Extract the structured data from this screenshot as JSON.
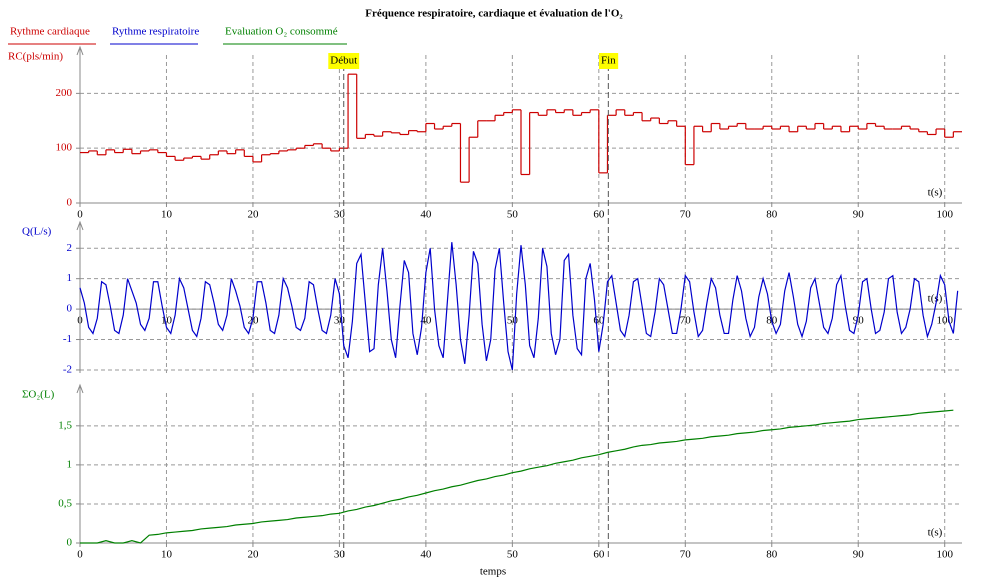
{
  "chart_data": [
    {
      "type": "line",
      "title": "Fréquence respiratoire, cardiaque et évaluation de l'O₂",
      "ylabel": "RC(pls/min)",
      "xlabel": "t(s)",
      "step": true,
      "grid": true,
      "xlim": [
        0,
        102
      ],
      "xticks": [
        0,
        10,
        20,
        30,
        40,
        50,
        60,
        70,
        80,
        90,
        100
      ],
      "ylim": [
        0,
        270
      ],
      "yticks": [
        0,
        100,
        200
      ],
      "annotations": [
        {
          "text": "Début",
          "x": 30.5
        },
        {
          "text": "Fin",
          "x": 61.1
        }
      ],
      "series": [
        {
          "name": "Rythme cardiaque",
          "color": "#cc0000",
          "x": [
            0,
            1,
            2,
            3,
            4,
            5,
            6,
            7,
            8,
            9,
            10,
            11,
            12,
            13,
            14,
            15,
            16,
            17,
            18,
            19,
            20,
            21,
            22,
            23,
            24,
            25,
            26,
            27,
            28,
            29,
            30,
            31,
            32,
            33,
            34,
            35,
            36,
            37,
            38,
            39,
            40,
            41,
            42,
            43,
            44,
            45,
            46,
            47,
            48,
            49,
            50,
            51,
            52,
            53,
            54,
            55,
            56,
            57,
            58,
            59,
            60,
            61,
            62,
            63,
            64,
            65,
            66,
            67,
            68,
            69,
            70,
            71,
            72,
            73,
            74,
            75,
            76,
            77,
            78,
            79,
            80,
            81,
            82,
            83,
            84,
            85,
            86,
            87,
            88,
            89,
            90,
            91,
            92,
            93,
            94,
            95,
            96,
            97,
            98,
            99,
            100,
            101
          ],
          "values": [
            92,
            95,
            88,
            97,
            92,
            98,
            90,
            95,
            97,
            92,
            85,
            78,
            82,
            85,
            80,
            88,
            95,
            90,
            97,
            85,
            75,
            88,
            90,
            95,
            97,
            100,
            105,
            108,
            100,
            95,
            100,
            235,
            118,
            125,
            122,
            130,
            128,
            125,
            132,
            130,
            145,
            135,
            140,
            145,
            38,
            120,
            150,
            150,
            160,
            165,
            170,
            52,
            165,
            160,
            170,
            165,
            170,
            160,
            165,
            170,
            55,
            160,
            170,
            160,
            165,
            150,
            155,
            145,
            150,
            140,
            70,
            140,
            130,
            145,
            135,
            140,
            145,
            135,
            135,
            140,
            135,
            140,
            130,
            140,
            135,
            145,
            135,
            140,
            130,
            140,
            135,
            145,
            140,
            135,
            135,
            140,
            135,
            130,
            125,
            135,
            120,
            130
          ]
        }
      ]
    },
    {
      "type": "line",
      "ylabel": "Q(L/s)",
      "xlabel": "t(s)",
      "grid": true,
      "xlim": [
        0,
        102
      ],
      "xticks": [
        0,
        10,
        20,
        30,
        40,
        50,
        60,
        70,
        80,
        90,
        100
      ],
      "ylim": [
        -2.1,
        2.6
      ],
      "yticks": [
        -2,
        -1,
        0,
        1,
        2
      ],
      "series": [
        {
          "name": "Rythme respiratoire",
          "color": "#0000cc",
          "x": [
            0,
            0.5,
            1,
            1.5,
            2,
            2.5,
            3,
            3.5,
            4,
            4.5,
            5,
            5.5,
            6,
            6.5,
            7,
            7.5,
            8,
            8.5,
            9,
            9.5,
            10,
            10.5,
            11,
            11.5,
            12,
            12.5,
            13,
            13.5,
            14,
            14.5,
            15,
            15.5,
            16,
            16.5,
            17,
            17.5,
            18,
            18.5,
            19,
            19.5,
            20,
            20.5,
            21,
            21.5,
            22,
            22.5,
            23,
            23.5,
            24,
            24.5,
            25,
            25.5,
            26,
            26.5,
            27,
            27.5,
            28,
            28.5,
            29,
            29.5,
            30,
            30.5,
            31,
            31.5,
            32,
            32.5,
            33,
            33.5,
            34,
            34.5,
            35,
            35.5,
            36,
            36.5,
            37,
            37.5,
            38,
            38.5,
            39,
            39.5,
            40,
            40.5,
            41,
            41.5,
            42,
            42.5,
            43,
            43.5,
            44,
            44.5,
            45,
            45.5,
            46,
            46.5,
            47,
            47.5,
            48,
            48.5,
            49,
            49.5,
            50,
            50.5,
            51,
            51.5,
            52,
            52.5,
            53,
            53.5,
            54,
            54.5,
            55,
            55.5,
            56,
            56.5,
            57,
            57.5,
            58,
            58.5,
            59,
            59.5,
            60,
            60.5,
            61,
            61.5,
            62,
            62.5,
            63,
            63.5,
            64,
            64.5,
            65,
            65.5,
            66,
            66.5,
            67,
            67.5,
            68,
            68.5,
            69,
            69.5,
            70,
            70.5,
            71,
            71.5,
            72,
            72.5,
            73,
            73.5,
            74,
            74.5,
            75,
            75.5,
            76,
            76.5,
            77,
            77.5,
            78,
            78.5,
            79,
            79.5,
            80,
            80.5,
            81,
            81.5,
            82,
            82.5,
            83,
            83.5,
            84,
            84.5,
            85,
            85.5,
            86,
            86.5,
            87,
            87.5,
            88,
            88.5,
            89,
            89.5,
            90,
            90.5,
            91,
            91.5,
            92,
            92.5,
            93,
            93.5,
            94,
            94.5,
            95,
            95.5,
            96,
            96.5,
            97,
            97.5,
            98,
            98.5,
            99,
            99.5,
            100,
            100.5,
            101,
            101.5
          ],
          "values": [
            0.7,
            0.2,
            -0.6,
            -0.8,
            -0.3,
            0.9,
            0.8,
            0.1,
            -0.7,
            -0.8,
            -0.2,
            1.0,
            0.6,
            0.2,
            -0.5,
            -0.7,
            -0.3,
            0.9,
            0.9,
            0.1,
            -0.6,
            -0.8,
            -0.2,
            1.0,
            0.7,
            0.0,
            -0.7,
            -0.9,
            -0.3,
            0.9,
            0.8,
            0.2,
            -0.5,
            -0.7,
            -0.2,
            1.0,
            0.6,
            0.1,
            -0.6,
            -0.8,
            -0.3,
            0.9,
            0.9,
            0.2,
            -0.7,
            -0.8,
            -0.2,
            1.0,
            0.7,
            0.1,
            -0.6,
            -0.7,
            -0.3,
            0.9,
            0.8,
            0.0,
            -0.7,
            -0.8,
            -0.2,
            1.0,
            0.5,
            -1.2,
            -1.6,
            -0.4,
            1.5,
            1.8,
            0.2,
            -1.4,
            -1.3,
            0.8,
            2.0,
            0.6,
            -1.0,
            -1.6,
            0.1,
            1.6,
            1.2,
            -0.8,
            -1.5,
            -0.6,
            1.2,
            2.0,
            0.0,
            -1.2,
            -1.6,
            0.3,
            2.2,
            0.8,
            -1.0,
            -1.8,
            -0.2,
            1.9,
            1.5,
            -0.5,
            -1.7,
            -1.0,
            1.3,
            2.0,
            0.2,
            -1.4,
            -2.0,
            0.5,
            2.1,
            0.8,
            -1.2,
            -1.6,
            -0.3,
            2.0,
            1.4,
            -0.8,
            -1.5,
            -1.0,
            1.6,
            1.8,
            -0.2,
            -1.3,
            -1.5,
            1.0,
            1.5,
            0.3,
            -1.4,
            -0.5,
            0.9,
            1.1,
            0.2,
            -0.7,
            -0.9,
            -0.2,
            0.9,
            1.0,
            0.1,
            -0.8,
            -0.9,
            -0.1,
            1.0,
            0.8,
            0.0,
            -0.8,
            -0.8,
            0.0,
            1.1,
            0.9,
            -0.1,
            -0.9,
            -0.7,
            0.2,
            1.0,
            0.7,
            -0.2,
            -0.8,
            -0.8,
            0.3,
            1.1,
            0.6,
            -0.3,
            -0.9,
            -0.6,
            0.4,
            1.0,
            0.5,
            -0.4,
            -0.8,
            -0.5,
            0.6,
            1.2,
            0.4,
            -0.5,
            -0.9,
            -0.4,
            0.7,
            1.0,
            0.2,
            -0.6,
            -0.8,
            -0.3,
            0.8,
            1.1,
            0.1,
            -0.7,
            -0.8,
            -0.2,
            0.9,
            1.0,
            0.0,
            -0.8,
            -0.7,
            -0.1,
            1.0,
            1.1,
            -0.1,
            -0.8,
            -0.6,
            0.0,
            1.0,
            0.9,
            -0.2,
            -0.9,
            -0.5,
            0.2,
            1.1,
            0.8,
            -0.4,
            -0.8,
            0.6
          ]
        }
      ]
    },
    {
      "type": "line",
      "ylabel": "ΣO₂(L)",
      "xlabel": "t(s)",
      "xtitle": "temps",
      "grid": true,
      "xlim": [
        0,
        102
      ],
      "xticks": [
        0,
        10,
        20,
        30,
        40,
        50,
        60,
        70,
        80,
        90,
        100
      ],
      "ylim": [
        0,
        1.92
      ],
      "yticks": [
        0,
        {
          "value": 0.5,
          "label": "0,5"
        },
        1,
        {
          "value": 1.5,
          "label": "1,5"
        }
      ],
      "series": [
        {
          "name": "Evaluation O₂ consommé",
          "color": "#008000",
          "x": [
            0,
            1,
            2,
            3,
            4,
            5,
            6,
            7,
            8,
            9,
            10,
            11,
            12,
            13,
            14,
            15,
            16,
            17,
            18,
            19,
            20,
            21,
            22,
            23,
            24,
            25,
            26,
            27,
            28,
            29,
            30,
            31,
            32,
            33,
            34,
            35,
            36,
            37,
            38,
            39,
            40,
            41,
            42,
            43,
            44,
            45,
            46,
            47,
            48,
            49,
            50,
            51,
            52,
            53,
            54,
            55,
            56,
            57,
            58,
            59,
            60,
            61,
            62,
            63,
            64,
            65,
            66,
            67,
            68,
            69,
            70,
            71,
            72,
            73,
            74,
            75,
            76,
            77,
            78,
            79,
            80,
            81,
            82,
            83,
            84,
            85,
            86,
            87,
            88,
            89,
            90,
            91,
            92,
            93,
            94,
            95,
            96,
            97,
            98,
            99,
            100,
            101
          ],
          "values": [
            0,
            0,
            0,
            0.03,
            0,
            0,
            0.03,
            0,
            0.1,
            0.11,
            0.13,
            0.14,
            0.15,
            0.16,
            0.18,
            0.19,
            0.2,
            0.21,
            0.23,
            0.24,
            0.25,
            0.27,
            0.28,
            0.29,
            0.3,
            0.32,
            0.33,
            0.34,
            0.35,
            0.37,
            0.38,
            0.41,
            0.43,
            0.46,
            0.48,
            0.51,
            0.54,
            0.56,
            0.59,
            0.61,
            0.64,
            0.67,
            0.69,
            0.72,
            0.74,
            0.77,
            0.8,
            0.82,
            0.85,
            0.87,
            0.9,
            0.92,
            0.95,
            0.97,
            0.99,
            1.02,
            1.04,
            1.06,
            1.09,
            1.11,
            1.13,
            1.16,
            1.18,
            1.2,
            1.23,
            1.25,
            1.26,
            1.28,
            1.29,
            1.3,
            1.32,
            1.33,
            1.34,
            1.36,
            1.37,
            1.38,
            1.4,
            1.41,
            1.42,
            1.44,
            1.45,
            1.46,
            1.48,
            1.49,
            1.5,
            1.51,
            1.53,
            1.54,
            1.55,
            1.56,
            1.58,
            1.59,
            1.6,
            1.61,
            1.62,
            1.63,
            1.64,
            1.66,
            1.67,
            1.68,
            1.69,
            1.7
          ]
        }
      ]
    }
  ]
}
